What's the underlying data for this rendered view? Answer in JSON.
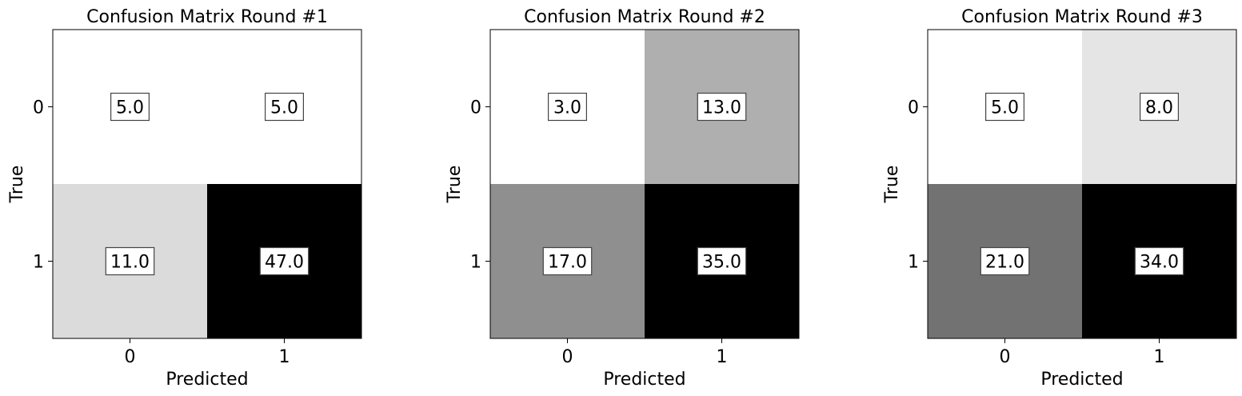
{
  "chart_data": [
    {
      "type": "heatmap",
      "title": "Confusion Matrix Round #1",
      "xlabel": "Predicted",
      "ylabel": "True",
      "x_categories": [
        "0",
        "1"
      ],
      "y_categories": [
        "0",
        "1"
      ],
      "values": [
        [
          5.0,
          5.0
        ],
        [
          11.0,
          47.0
        ]
      ],
      "cell_labels": [
        [
          "5.0",
          "5.0"
        ],
        [
          "11.0",
          "47.0"
        ]
      ],
      "colormap": "greys",
      "vmin": 5.0,
      "vmax": 47.0,
      "grid": false,
      "legend": "none"
    },
    {
      "type": "heatmap",
      "title": "Confusion Matrix Round #2",
      "xlabel": "Predicted",
      "ylabel": "True",
      "x_categories": [
        "0",
        "1"
      ],
      "y_categories": [
        "0",
        "1"
      ],
      "values": [
        [
          3.0,
          13.0
        ],
        [
          17.0,
          35.0
        ]
      ],
      "cell_labels": [
        [
          "3.0",
          "13.0"
        ],
        [
          "17.0",
          "35.0"
        ]
      ],
      "colormap": "greys",
      "vmin": 3.0,
      "vmax": 35.0,
      "grid": false,
      "legend": "none"
    },
    {
      "type": "heatmap",
      "title": "Confusion Matrix Round #3",
      "xlabel": "Predicted",
      "ylabel": "True",
      "x_categories": [
        "0",
        "1"
      ],
      "y_categories": [
        "0",
        "1"
      ],
      "values": [
        [
          5.0,
          8.0
        ],
        [
          21.0,
          34.0
        ]
      ],
      "cell_labels": [
        [
          "5.0",
          "8.0"
        ],
        [
          "21.0",
          "34.0"
        ]
      ],
      "colormap": "greys",
      "vmin": 5.0,
      "vmax": 34.0,
      "grid": false,
      "legend": "none"
    }
  ],
  "colors": {
    "background": "#ffffff",
    "text": "#000000",
    "axis": "#000000",
    "label_box_border": "#444444",
    "label_box_fill": "#ffffff"
  }
}
